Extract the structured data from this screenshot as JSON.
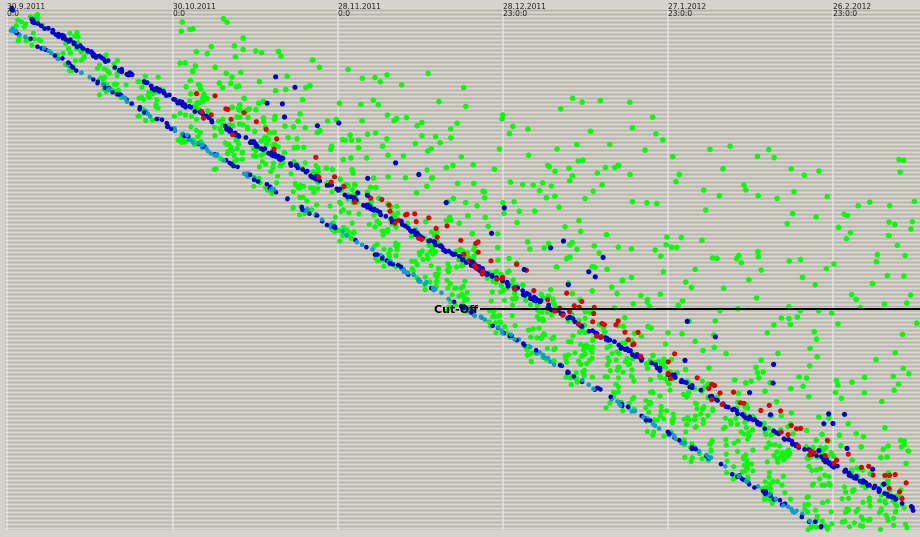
{
  "chart_data": {
    "type": "scatter",
    "x_ticks": [
      {
        "date": "30.9.2011",
        "time": "0:0"
      },
      {
        "date": "30.10.2011",
        "time": "0:0"
      },
      {
        "date": "28.11.2011",
        "time": "0:0"
      },
      {
        "date": "28.12.2011",
        "time": "23:0:0"
      },
      {
        "date": "27.1.2012",
        "time": "23:0:0"
      },
      {
        "date": "26.2.2012",
        "time": "23:0:0"
      }
    ],
    "annotation": {
      "label": "Cut-Off"
    },
    "colors": {
      "background": "#c9c6bf",
      "stripe_light": "#d9d7d0",
      "stripe_dark": "#b8b5ad",
      "gridline": "#eeeeee",
      "green": "#00ff00",
      "blue": "#0000cc",
      "red": "#e00000",
      "cyan": "#0aa0c8",
      "cutoff": "#000000"
    }
  }
}
